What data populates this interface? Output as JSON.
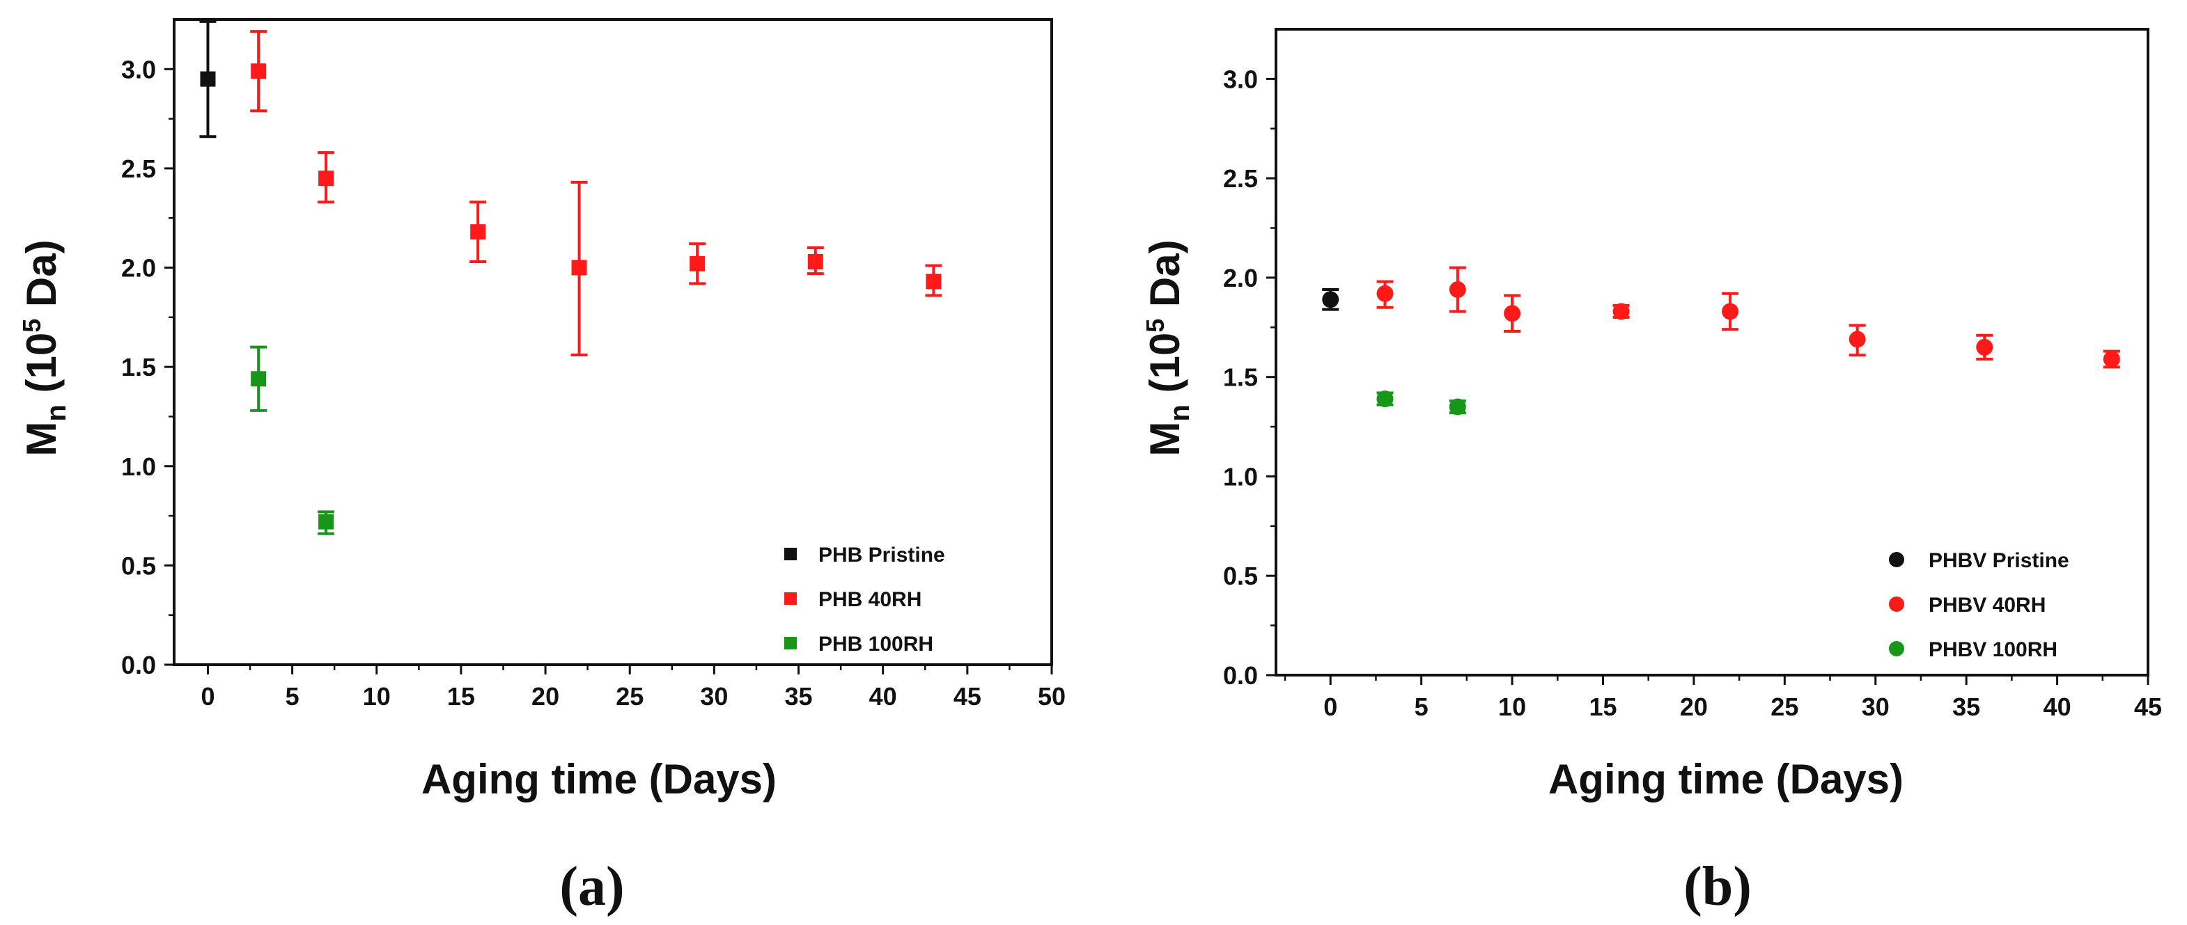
{
  "chart_data": [
    {
      "type": "scatter",
      "panel_label": "(a)",
      "xlabel": "Aging time (Days)",
      "ylabel": {
        "main": "M",
        "subscript": "n",
        "unit_prefix": " (10",
        "superscript": "5",
        "unit_suffix": " Da)"
      },
      "xlim": [
        -2,
        50
      ],
      "ylim": [
        0,
        3.25
      ],
      "xticks": [
        0,
        5,
        10,
        15,
        20,
        25,
        30,
        35,
        40,
        45,
        50
      ],
      "yticks": [
        "0.0",
        "0.5",
        "1.0",
        "1.5",
        "2.0",
        "2.5",
        "3.0"
      ],
      "marker": "square",
      "legend_position": "bottom-right",
      "series": [
        {
          "name": "PHB Pristine",
          "color": "#111111",
          "points": [
            {
              "x": 0,
              "y": 2.95,
              "err_low": 0.29,
              "err_high": 0.29
            }
          ]
        },
        {
          "name": "PHB 40RH",
          "color": "#ff1a1a",
          "points": [
            {
              "x": 3,
              "y": 2.99,
              "err_low": 0.2,
              "err_high": 0.2
            },
            {
              "x": 7,
              "y": 2.45,
              "err_low": 0.12,
              "err_high": 0.13
            },
            {
              "x": 16,
              "y": 2.18,
              "err_low": 0.15,
              "err_high": 0.15
            },
            {
              "x": 22,
              "y": 2.0,
              "err_low": 0.44,
              "err_high": 0.43
            },
            {
              "x": 29,
              "y": 2.02,
              "err_low": 0.1,
              "err_high": 0.1
            },
            {
              "x": 36,
              "y": 2.03,
              "err_low": 0.06,
              "err_high": 0.07
            },
            {
              "x": 43,
              "y": 1.93,
              "err_low": 0.07,
              "err_high": 0.08
            }
          ]
        },
        {
          "name": "PHB 100RH",
          "color": "#189618",
          "points": [
            {
              "x": 3,
              "y": 1.44,
              "err_low": 0.16,
              "err_high": 0.16
            },
            {
              "x": 7,
              "y": 0.72,
              "err_low": 0.06,
              "err_high": 0.05
            }
          ]
        }
      ]
    },
    {
      "type": "scatter",
      "panel_label": "(b)",
      "xlabel": "Aging time (Days)",
      "ylabel": {
        "main": "M",
        "subscript": "n",
        "unit_prefix": " (10",
        "superscript": "5",
        "unit_suffix": " Da)"
      },
      "xlim": [
        -3,
        45
      ],
      "ylim": [
        0,
        3.25
      ],
      "xticks": [
        0,
        5,
        10,
        15,
        20,
        25,
        30,
        35,
        40,
        45
      ],
      "yticks": [
        "0.0",
        "0.5",
        "1.0",
        "1.5",
        "2.0",
        "2.5",
        "3.0"
      ],
      "marker": "circle",
      "legend_position": "bottom-right",
      "series": [
        {
          "name": "PHBV Pristine",
          "color": "#111111",
          "points": [
            {
              "x": 0,
              "y": 1.89,
              "err_low": 0.05,
              "err_high": 0.05
            }
          ]
        },
        {
          "name": "PHBV 40RH",
          "color": "#ff1a1a",
          "points": [
            {
              "x": 3,
              "y": 1.92,
              "err_low": 0.07,
              "err_high": 0.06
            },
            {
              "x": 7,
              "y": 1.94,
              "err_low": 0.11,
              "err_high": 0.11
            },
            {
              "x": 10,
              "y": 1.82,
              "err_low": 0.09,
              "err_high": 0.09
            },
            {
              "x": 16,
              "y": 1.83,
              "err_low": 0.03,
              "err_high": 0.03
            },
            {
              "x": 22,
              "y": 1.83,
              "err_low": 0.09,
              "err_high": 0.09
            },
            {
              "x": 29,
              "y": 1.69,
              "err_low": 0.08,
              "err_high": 0.07
            },
            {
              "x": 36,
              "y": 1.65,
              "err_low": 0.06,
              "err_high": 0.06
            },
            {
              "x": 43,
              "y": 1.59,
              "err_low": 0.04,
              "err_high": 0.04
            }
          ]
        },
        {
          "name": "PHBV 100RH",
          "color": "#189618",
          "points": [
            {
              "x": 3,
              "y": 1.39,
              "err_low": 0.03,
              "err_high": 0.03
            },
            {
              "x": 7,
              "y": 1.35,
              "err_low": 0.03,
              "err_high": 0.03
            }
          ]
        }
      ]
    }
  ]
}
